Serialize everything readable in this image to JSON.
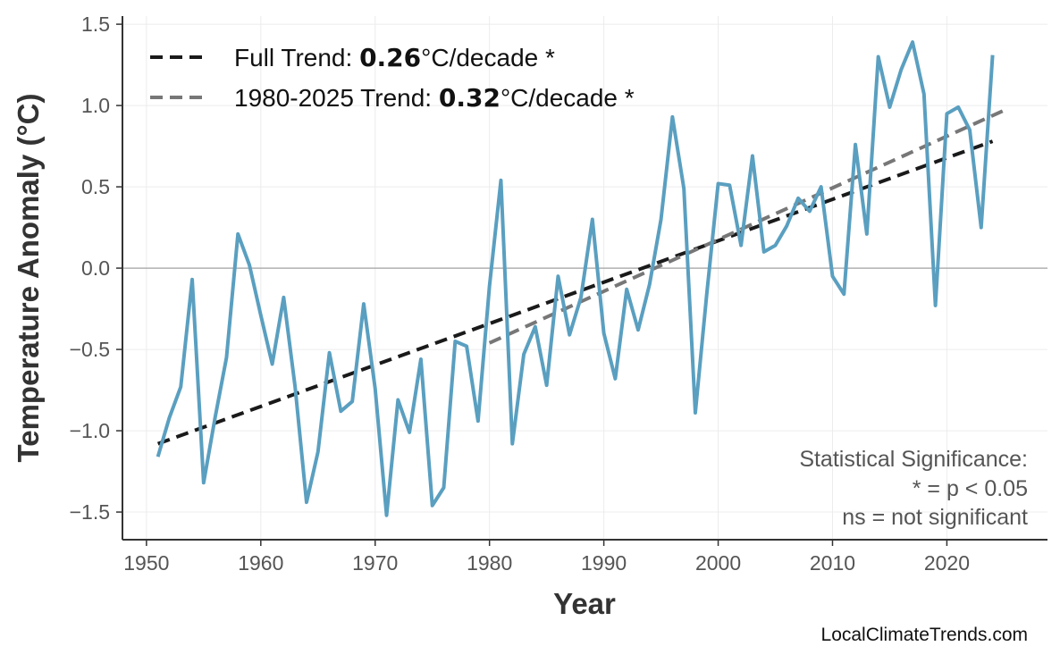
{
  "chart_data": {
    "type": "line",
    "xlabel": "Year",
    "ylabel": "Temperature Anomaly (°C)",
    "xlim": [
      1947.9,
      2028.8
    ],
    "ylim": [
      -1.67,
      1.55
    ],
    "xticks": [
      1950,
      1960,
      1970,
      1980,
      1990,
      2000,
      2010,
      2020
    ],
    "yticks": [
      -1.5,
      -1.0,
      -0.5,
      0.0,
      0.5,
      1.0,
      1.5
    ],
    "ytick_labels": [
      "−1.5",
      "−1.0",
      "−0.5",
      "0.0",
      "0.5",
      "1.0",
      "1.5"
    ],
    "grid": true,
    "legend_placement": "top-left",
    "colors": {
      "series": "#5a9fc0",
      "full_trend": "#1a1a1a",
      "recent_trend": "#777777",
      "zero_line": "#b0b0b0",
      "grid": "#ececec"
    },
    "series": [
      {
        "x": [
          1951,
          1952,
          1953,
          1954,
          1955,
          1956,
          1957,
          1958,
          1959,
          1960,
          1961,
          1962,
          1963,
          1964,
          1965,
          1966,
          1967,
          1968,
          1969,
          1970,
          1971,
          1972,
          1973,
          1974,
          1975,
          1976,
          1977,
          1978,
          1979,
          1980,
          1981,
          1982,
          1983,
          1984,
          1985,
          1986,
          1987,
          1988,
          1989,
          1990,
          1991,
          1992,
          1993,
          1994,
          1995,
          1996,
          1997,
          1998,
          1999,
          2000,
          2001,
          2002,
          2003,
          2004,
          2005,
          2006,
          2007,
          2008,
          2009,
          2010,
          2011,
          2012,
          2013,
          2014,
          2015,
          2016,
          2017,
          2018,
          2019,
          2020,
          2021,
          2022,
          2023,
          2024
        ],
        "y": [
          -1.16,
          -0.92,
          -0.73,
          -0.07,
          -1.32,
          -0.92,
          -0.55,
          0.21,
          0.02,
          -0.29,
          -0.59,
          -0.18,
          -0.73,
          -1.44,
          -1.13,
          -0.52,
          -0.88,
          -0.82,
          -0.22,
          -0.74,
          -1.52,
          -0.81,
          -1.01,
          -0.56,
          -1.46,
          -1.35,
          -0.45,
          -0.48,
          -0.94,
          -0.11,
          0.54,
          -1.08,
          -0.53,
          -0.36,
          -0.72,
          -0.05,
          -0.41,
          -0.18,
          0.3,
          -0.4,
          -0.68,
          -0.13,
          -0.38,
          -0.1,
          0.3,
          0.93,
          0.49,
          -0.89,
          -0.16,
          0.52,
          0.51,
          0.14,
          0.69,
          0.1,
          0.14,
          0.26,
          0.43,
          0.35,
          0.5,
          -0.05,
          -0.16,
          0.76,
          0.21,
          1.3,
          0.99,
          1.22,
          1.39,
          1.07,
          -0.23,
          0.95,
          0.99,
          0.85,
          0.25,
          1.31
        ]
      }
    ],
    "trends": [
      {
        "label_prefix": "Full Trend: ",
        "value": "0.26",
        "label_suffix": "°C/decade *",
        "x": [
          1951,
          2024
        ],
        "y": [
          -1.08,
          0.78
        ]
      },
      {
        "label_prefix": "1980-2025 Trend: ",
        "value": "0.32",
        "label_suffix": "°C/decade *",
        "x": [
          1980,
          2025
        ],
        "y": [
          -0.46,
          0.97
        ]
      }
    ],
    "annotation": [
      "Statistical Significance:",
      "* = p < 0.05",
      "ns = not significant"
    ],
    "credit": "LocalClimateTrends.com"
  }
}
